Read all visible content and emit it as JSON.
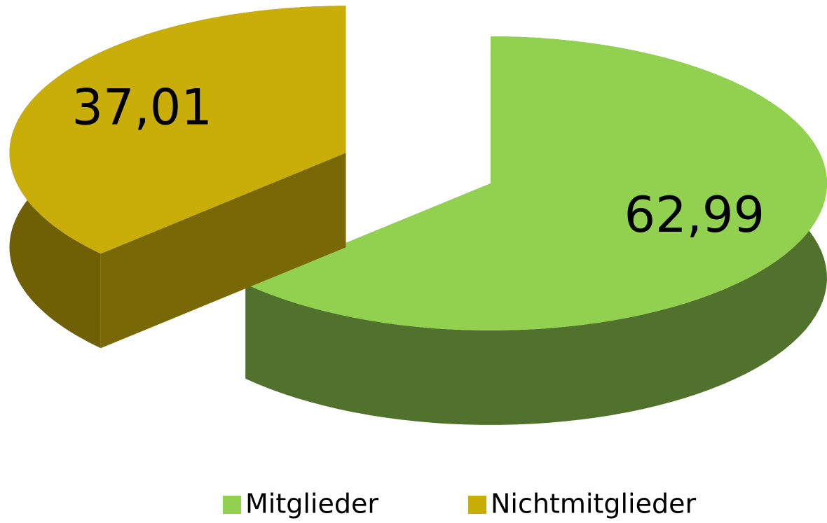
{
  "chart_data": {
    "type": "pie",
    "categories": [
      "Mitglieder",
      "Nichtmitglieder"
    ],
    "values": [
      62.99,
      37.01
    ],
    "value_labels": [
      "62,99",
      "37,01"
    ],
    "colors": [
      "#92d050",
      "#c9ae0a"
    ],
    "legend": "bottom"
  }
}
